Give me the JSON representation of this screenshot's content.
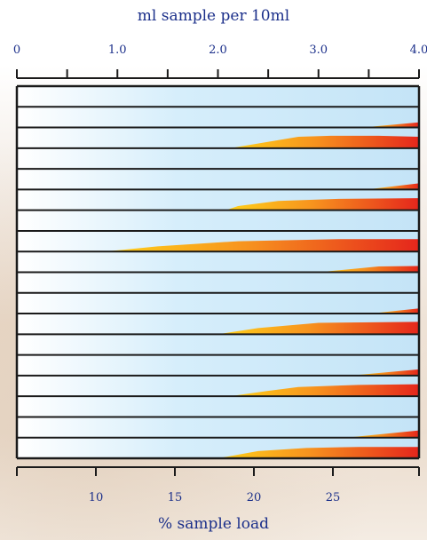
{
  "top_axis": {
    "label": "ml sample per 10ml",
    "min": 0,
    "max": 4.0,
    "ticks": [
      {
        "value": 0,
        "label": "0"
      },
      {
        "value": 0.5,
        "label": ""
      },
      {
        "value": 1.0,
        "label": "1.0"
      },
      {
        "value": 1.5,
        "label": ""
      },
      {
        "value": 2.0,
        "label": "2.0"
      },
      {
        "value": 2.5,
        "label": ""
      },
      {
        "value": 3.0,
        "label": "3.0"
      },
      {
        "value": 3.5,
        "label": ""
      },
      {
        "value": 4.0,
        "label": "4.0"
      }
    ]
  },
  "bottom_axis": {
    "label": "% sample load",
    "min": 5,
    "max": 30,
    "ticks": [
      {
        "value": 5,
        "label": ""
      },
      {
        "value": 10,
        "label": "10"
      },
      {
        "value": 15,
        "label": "15"
      },
      {
        "value": 20,
        "label": "20"
      },
      {
        "value": 25,
        "label": "25"
      }
    ]
  },
  "colors": {
    "band_light": "#cfe9f8",
    "band_white": "#eef8fe",
    "border": "#1a1a1a",
    "axis_text": "#1b2f8a",
    "wedge_start": "#ffd21a",
    "wedge_mid": "#f7931e",
    "wedge_end": "#e53a1c"
  },
  "bands": [
    {
      "wedge": null
    },
    {
      "wedge": {
        "start": 0.86,
        "points": [
          [
            0.86,
            0.0
          ],
          [
            1.0,
            0.25
          ]
        ],
        "side": "bottom"
      }
    },
    {
      "wedge": {
        "start": 0.53,
        "points": [
          [
            0.53,
            0.0
          ],
          [
            0.7,
            0.55
          ],
          [
            0.78,
            0.6
          ],
          [
            0.9,
            0.6
          ],
          [
            1.0,
            0.55
          ]
        ],
        "side": "bottom"
      }
    },
    {
      "wedge": null
    },
    {
      "wedge": {
        "start": 0.87,
        "points": [
          [
            0.87,
            0.0
          ],
          [
            1.0,
            0.3
          ]
        ],
        "side": "bottom"
      }
    },
    {
      "wedge": {
        "start": 0.52,
        "points": [
          [
            0.52,
            0.0
          ],
          [
            0.55,
            0.2
          ],
          [
            0.65,
            0.45
          ],
          [
            0.8,
            0.55
          ],
          [
            1.0,
            0.58
          ]
        ],
        "side": "bottom"
      }
    },
    {
      "wedge": null
    },
    {
      "wedge": {
        "start": 0.22,
        "points": [
          [
            0.22,
            0.0
          ],
          [
            0.35,
            0.25
          ],
          [
            0.55,
            0.5
          ],
          [
            0.8,
            0.6
          ],
          [
            1.0,
            0.6
          ]
        ],
        "side": "bottom"
      }
    },
    {
      "wedge": {
        "start": 0.75,
        "points": [
          [
            0.75,
            0.0
          ],
          [
            0.9,
            0.28
          ],
          [
            1.0,
            0.3
          ]
        ],
        "side": "bottom"
      }
    },
    {
      "wedge": null
    },
    {
      "wedge": {
        "start": 0.88,
        "points": [
          [
            0.88,
            0.0
          ],
          [
            1.0,
            0.25
          ]
        ],
        "side": "bottom"
      }
    },
    {
      "wedge": {
        "start": 0.5,
        "points": [
          [
            0.5,
            0.0
          ],
          [
            0.6,
            0.3
          ],
          [
            0.75,
            0.55
          ],
          [
            1.0,
            0.6
          ]
        ],
        "side": "bottom"
      }
    },
    {
      "wedge": null
    },
    {
      "wedge": {
        "start": 0.83,
        "points": [
          [
            0.83,
            0.0
          ],
          [
            1.0,
            0.3
          ]
        ],
        "side": "bottom"
      }
    },
    {
      "wedge": {
        "start": 0.53,
        "points": [
          [
            0.53,
            0.0
          ],
          [
            0.62,
            0.25
          ],
          [
            0.7,
            0.45
          ],
          [
            0.85,
            0.55
          ],
          [
            1.0,
            0.58
          ]
        ],
        "side": "bottom"
      }
    },
    {
      "wedge": null
    },
    {
      "wedge": {
        "start": 0.82,
        "points": [
          [
            0.82,
            0.0
          ],
          [
            1.0,
            0.35
          ]
        ],
        "side": "bottom"
      }
    },
    {
      "wedge": {
        "start": 0.5,
        "points": [
          [
            0.5,
            0.0
          ],
          [
            0.6,
            0.35
          ],
          [
            0.72,
            0.5
          ],
          [
            0.85,
            0.55
          ],
          [
            1.0,
            0.55
          ]
        ],
        "side": "bottom"
      }
    }
  ]
}
